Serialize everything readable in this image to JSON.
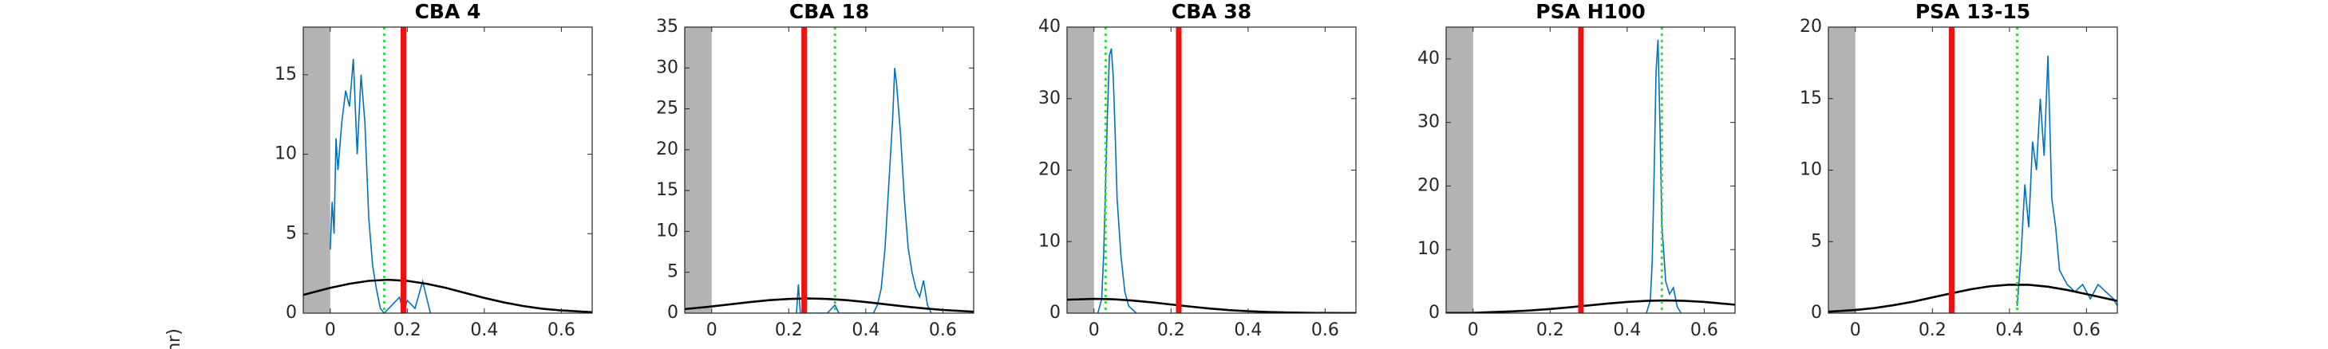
{
  "ylabel": "nr)",
  "chart_data": [
    {
      "type": "line",
      "title": "CBA 4",
      "xlim": [
        -0.07,
        0.68
      ],
      "ylim": [
        0,
        18
      ],
      "xticks": [
        0,
        0.2,
        0.4,
        0.6
      ],
      "yticks": [
        0,
        5,
        10,
        15
      ],
      "shade": {
        "x": [
          -0.07,
          0
        ],
        "color": "#b3b3b3"
      },
      "vlines": [
        {
          "x": 0.19,
          "color": "#ee1111",
          "style": "solid"
        },
        {
          "x": 0.14,
          "color": "#33dd33",
          "style": "dotted"
        }
      ],
      "series": [
        {
          "color": "#0072bd",
          "x": [
            0,
            0.005,
            0.01,
            0.015,
            0.02,
            0.03,
            0.04,
            0.05,
            0.06,
            0.07,
            0.08,
            0.09,
            0.1,
            0.11,
            0.12,
            0.13,
            0.14,
            0.16,
            0.18,
            0.19,
            0.2,
            0.22,
            0.24,
            0.26
          ],
          "values": [
            4,
            7,
            5,
            11,
            9,
            12,
            14,
            13,
            16,
            10,
            15,
            12,
            6,
            3,
            1.5,
            0.3,
            0,
            0.5,
            1,
            0,
            0.8,
            0.3,
            2,
            0
          ]
        },
        {
          "color": "#000000",
          "x": [
            -0.07,
            0,
            0.05,
            0.1,
            0.15,
            0.2,
            0.25,
            0.3,
            0.35,
            0.4,
            0.45,
            0.5,
            0.55,
            0.6,
            0.68
          ],
          "values": [
            1.15,
            1.59,
            1.85,
            2.03,
            2.1,
            2.03,
            1.85,
            1.59,
            1.27,
            0.96,
            0.68,
            0.45,
            0.28,
            0.17,
            0.06
          ]
        }
      ]
    },
    {
      "type": "line",
      "title": "CBA 18",
      "xlim": [
        -0.07,
        0.68
      ],
      "ylim": [
        0,
        35
      ],
      "xticks": [
        0,
        0.2,
        0.4,
        0.6
      ],
      "yticks": [
        0,
        5,
        10,
        15,
        20,
        25,
        30,
        35
      ],
      "shade": {
        "x": [
          -0.07,
          0
        ],
        "color": "#b3b3b3"
      },
      "vlines": [
        {
          "x": 0.24,
          "color": "#ee1111",
          "style": "solid"
        },
        {
          "x": 0.32,
          "color": "#33dd33",
          "style": "dotted"
        }
      ],
      "series": [
        {
          "color": "#0072bd",
          "x": [
            0.22,
            0.225,
            0.23,
            0.3,
            0.32,
            0.33,
            0.34,
            0.42,
            0.43,
            0.44,
            0.45,
            0.46,
            0.47,
            0.475,
            0.48,
            0.49,
            0.5,
            0.51,
            0.52,
            0.53,
            0.54,
            0.55,
            0.56,
            0.57
          ],
          "values": [
            0,
            3.5,
            0,
            0,
            1,
            0,
            0,
            0,
            1,
            3,
            8,
            16,
            24,
            30,
            28,
            22,
            14,
            8,
            5,
            3,
            2,
            4,
            1,
            0
          ]
        },
        {
          "color": "#000000",
          "x": [
            -0.07,
            0,
            0.05,
            0.1,
            0.15,
            0.2,
            0.25,
            0.3,
            0.35,
            0.4,
            0.45,
            0.5,
            0.55,
            0.6,
            0.68
          ],
          "values": [
            0.5,
            0.82,
            1.09,
            1.36,
            1.59,
            1.74,
            1.8,
            1.74,
            1.59,
            1.36,
            1.09,
            0.82,
            0.59,
            0.39,
            0.18
          ]
        }
      ]
    },
    {
      "type": "line",
      "title": "CBA 38",
      "xlim": [
        -0.07,
        0.68
      ],
      "ylim": [
        0,
        40
      ],
      "xticks": [
        0,
        0.2,
        0.4,
        0.6
      ],
      "yticks": [
        0,
        10,
        20,
        30,
        40
      ],
      "shade": {
        "x": [
          -0.07,
          0
        ],
        "color": "#b3b3b3"
      },
      "vlines": [
        {
          "x": 0.22,
          "color": "#ee1111",
          "style": "solid"
        },
        {
          "x": 0.03,
          "color": "#33dd33",
          "style": "dotted"
        }
      ],
      "series": [
        {
          "color": "#0072bd",
          "x": [
            0.01,
            0.02,
            0.025,
            0.03,
            0.035,
            0.04,
            0.045,
            0.05,
            0.055,
            0.06,
            0.07,
            0.08,
            0.09,
            0.1,
            0.11
          ],
          "values": [
            0,
            2,
            8,
            18,
            28,
            36,
            37,
            33,
            25,
            16,
            8,
            3,
            1,
            0.5,
            0
          ]
        },
        {
          "color": "#000000",
          "x": [
            -0.07,
            0,
            0.05,
            0.1,
            0.15,
            0.2,
            0.25,
            0.3,
            0.35,
            0.4,
            0.45,
            0.5,
            0.55,
            0.6,
            0.68
          ],
          "values": [
            1.88,
            2,
            1.94,
            1.76,
            1.51,
            1.21,
            0.92,
            0.65,
            0.43,
            0.27,
            0.16,
            0.09,
            0.045,
            0.02,
            0.006
          ]
        }
      ]
    },
    {
      "type": "line",
      "title": "PSA H100",
      "xlim": [
        -0.07,
        0.68
      ],
      "ylim": [
        0,
        45
      ],
      "xticks": [
        0,
        0.2,
        0.4,
        0.6
      ],
      "yticks": [
        0,
        10,
        20,
        30,
        40
      ],
      "shade": {
        "x": [
          -0.07,
          0
        ],
        "color": "#b3b3b3"
      },
      "vlines": [
        {
          "x": 0.28,
          "color": "#ee1111",
          "style": "solid"
        },
        {
          "x": 0.49,
          "color": "#33dd33",
          "style": "dotted"
        }
      ],
      "series": [
        {
          "color": "#0072bd",
          "x": [
            0.45,
            0.46,
            0.465,
            0.47,
            0.475,
            0.48,
            0.485,
            0.49,
            0.5,
            0.51,
            0.52,
            0.53,
            0.54
          ],
          "values": [
            0,
            2,
            8,
            22,
            38,
            43,
            30,
            14,
            5,
            3,
            4,
            1,
            0
          ]
        },
        {
          "color": "#000000",
          "x": [
            -0.07,
            0,
            0.05,
            0.1,
            0.15,
            0.2,
            0.25,
            0.3,
            0.35,
            0.4,
            0.45,
            0.5,
            0.55,
            0.6,
            0.68
          ],
          "values": [
            0.03,
            0.04,
            0.16,
            0.27,
            0.43,
            0.65,
            0.92,
            1.21,
            1.51,
            1.76,
            1.94,
            2,
            1.94,
            1.76,
            1.33
          ]
        }
      ]
    },
    {
      "type": "line",
      "title": "PSA 13-15",
      "xlim": [
        -0.07,
        0.68
      ],
      "ylim": [
        0,
        20
      ],
      "xticks": [
        0,
        0.2,
        0.4,
        0.6
      ],
      "yticks": [
        0,
        5,
        10,
        15,
        20
      ],
      "shade": {
        "x": [
          -0.07,
          0
        ],
        "color": "#b3b3b3"
      },
      "vlines": [
        {
          "x": 0.25,
          "color": "#ee1111",
          "style": "solid"
        },
        {
          "x": 0.42,
          "color": "#33dd33",
          "style": "dotted"
        }
      ],
      "series": [
        {
          "color": "#0072bd",
          "x": [
            0.42,
            0.43,
            0.44,
            0.45,
            0.46,
            0.47,
            0.48,
            0.49,
            0.5,
            0.51,
            0.52,
            0.53,
            0.55,
            0.57,
            0.59,
            0.61,
            0.63,
            0.65,
            0.67,
            0.68
          ],
          "values": [
            0.5,
            4,
            9,
            6,
            12,
            10,
            15,
            11,
            18,
            8,
            6,
            3,
            2,
            1.5,
            2,
            1,
            2,
            1.5,
            1,
            0.5
          ]
        },
        {
          "color": "#000000",
          "x": [
            -0.07,
            0,
            0.05,
            0.1,
            0.15,
            0.2,
            0.25,
            0.3,
            0.35,
            0.4,
            0.45,
            0.5,
            0.55,
            0.6,
            0.68
          ],
          "values": [
            0.1,
            0.22,
            0.36,
            0.56,
            0.8,
            1.1,
            1.39,
            1.67,
            1.88,
            1.99,
            1.98,
            1.85,
            1.62,
            1.33,
            0.86
          ]
        }
      ]
    }
  ]
}
